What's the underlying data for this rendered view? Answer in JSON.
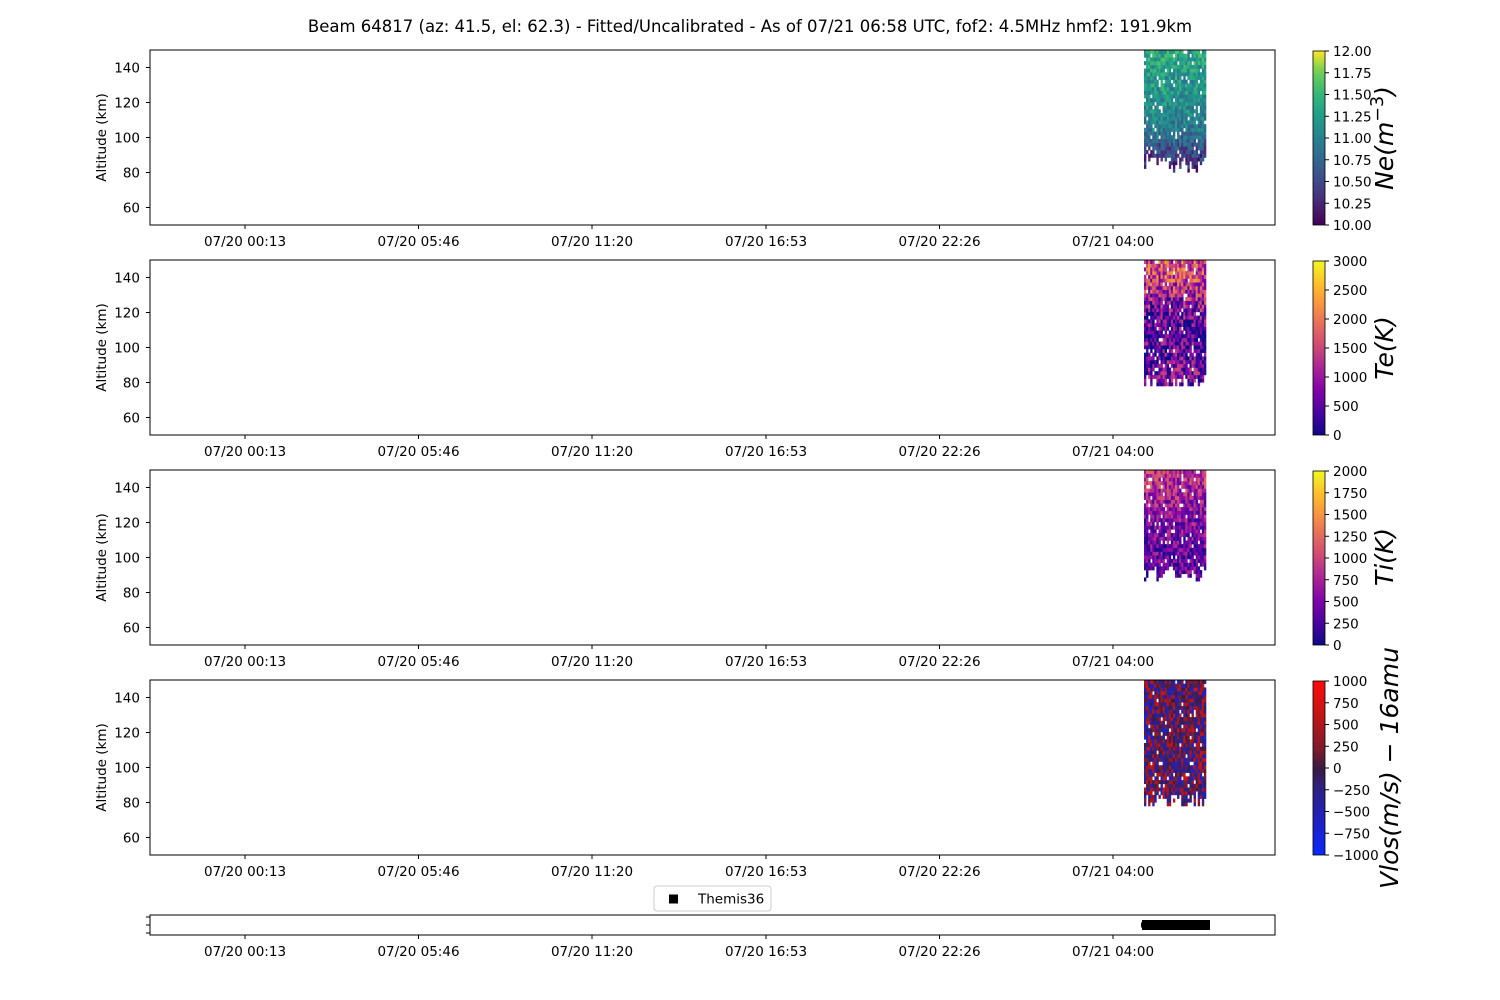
{
  "title": "Beam 64817 (az: 41.5, el: 62.3) - Fitted/Uncalibrated - As of 07/21 06:58 UTC, fof2: 4.5MHz  hmf2: 191.9km",
  "x_tick_labels": [
    "07/20 00:13",
    "07/20 05:46",
    "07/20 11:20",
    "07/20 16:53",
    "07/20 22:26",
    "07/21 04:00"
  ],
  "chart_data": [
    {
      "type": "heatmap",
      "ylabel": "Altitude (km)",
      "colorbar_label": "Ne(m^-3)",
      "colormap": "viridis",
      "clim": [
        10.0,
        12.0
      ],
      "colorbar_ticks": [
        "10.00",
        "10.25",
        "10.50",
        "10.75",
        "11.00",
        "11.25",
        "11.50",
        "11.75",
        "12.00"
      ],
      "ylim": [
        50,
        150
      ],
      "y_ticks": [
        60,
        80,
        100,
        120,
        140
      ],
      "x_range": [
        "07/21 05:05",
        "07/21 06:58"
      ],
      "profile": {
        "altitudes": [
          80,
          85,
          90,
          95,
          100,
          105,
          110,
          115,
          120,
          125,
          130,
          135,
          140,
          145,
          150
        ],
        "values": [
          10.2,
          10.3,
          10.45,
          10.6,
          10.8,
          10.95,
          11.0,
          11.05,
          11.1,
          11.15,
          11.2,
          11.2,
          11.25,
          11.3,
          11.3
        ]
      },
      "spread": 0.35,
      "cutoff_km": 85,
      "seed": 11
    },
    {
      "type": "heatmap",
      "ylabel": "Altitude (km)",
      "colorbar_label": "Te(K)",
      "colormap": "plasma",
      "clim": [
        0,
        3000
      ],
      "colorbar_ticks": [
        "0",
        "500",
        "1000",
        "1500",
        "2000",
        "2500",
        "3000"
      ],
      "ylim": [
        50,
        150
      ],
      "y_ticks": [
        60,
        80,
        100,
        120,
        140
      ],
      "x_range": [
        "07/21 05:05",
        "07/21 06:58"
      ],
      "profile": {
        "altitudes": [
          80,
          85,
          90,
          95,
          100,
          105,
          110,
          115,
          120,
          125,
          130,
          135,
          140,
          145,
          150
        ],
        "values": [
          700,
          700,
          600,
          550,
          500,
          500,
          550,
          650,
          750,
          900,
          1100,
          1300,
          1500,
          1600,
          1700
        ]
      },
      "spread": 900,
      "cutoff_km": 79,
      "seed": 23
    },
    {
      "type": "heatmap",
      "ylabel": "Altitude (km)",
      "colorbar_label": "Ti(K)",
      "colormap": "plasma",
      "clim": [
        0,
        2000
      ],
      "colorbar_ticks": [
        "0",
        "250",
        "500",
        "750",
        "1000",
        "1250",
        "1500",
        "1750",
        "2000"
      ],
      "ylim": [
        50,
        150
      ],
      "y_ticks": [
        60,
        80,
        100,
        120,
        140
      ],
      "x_range": [
        "07/21 05:05",
        "07/21 06:58"
      ],
      "profile": {
        "altitudes": [
          85,
          90,
          95,
          100,
          105,
          110,
          115,
          120,
          125,
          130,
          135,
          140,
          145,
          150
        ],
        "values": [
          300,
          350,
          350,
          400,
          450,
          450,
          500,
          550,
          600,
          650,
          700,
          750,
          800,
          850
        ]
      },
      "spread": 450,
      "cutoff_km": 90,
      "seed": 37
    },
    {
      "type": "heatmap",
      "ylabel": "Altitude (km)",
      "colorbar_label": "Vlos(m/s) - 16amu",
      "colormap": "bwr-dark",
      "clim": [
        -1000,
        1000
      ],
      "colorbar_ticks": [
        "−1000",
        "−750",
        "−500",
        "−250",
        "0",
        "250",
        "500",
        "750",
        "1000"
      ],
      "ylim": [
        50,
        150
      ],
      "y_ticks": [
        60,
        80,
        100,
        120,
        140
      ],
      "x_range": [
        "07/21 05:05",
        "07/21 06:58"
      ],
      "profile": {
        "altitudes": [
          80,
          100,
          120,
          150
        ],
        "values": [
          0,
          0,
          0,
          0
        ]
      },
      "spread": 700,
      "cutoff_km": 80,
      "seed": 53
    },
    {
      "type": "scatter",
      "legend": "Themis36",
      "legend_position": "top-center",
      "marker": "square",
      "x_range": [
        "07/21 05:05",
        "07/21 06:58"
      ]
    }
  ]
}
